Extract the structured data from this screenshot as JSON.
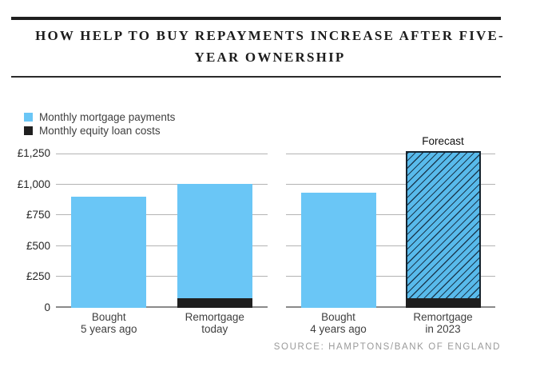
{
  "header": {
    "title_line1": "HOW HELP TO BUY REPAYMENTS INCREASE AFTER FIVE-",
    "title_line2": "YEAR OWNERSHIP"
  },
  "legend": {
    "items": [
      {
        "label": "Monthly mortgage payments",
        "color": "#6AC6F6"
      },
      {
        "label": "Monthly equity loan costs",
        "color": "#1F1F1F"
      }
    ]
  },
  "source": "SOURCE: HAMPTONS/BANK OF ENGLAND",
  "chart_data": {
    "type": "bar",
    "stacked": true,
    "title": "How Help to Buy repayments increase after five-year ownership",
    "xlabel": "",
    "ylabel": "",
    "ylim": [
      0,
      1250
    ],
    "grid": true,
    "legend_position": "top-left",
    "y_ticks": [
      0,
      250,
      500,
      750,
      1000,
      1250
    ],
    "y_tick_labels": [
      "0",
      "£250",
      "£500",
      "£750",
      "£1,000",
      "£1,250"
    ],
    "series_names": [
      "Monthly mortgage payments",
      "Monthly equity loan costs"
    ],
    "panels": [
      {
        "bars": [
          {
            "label": "Bought\n5 years ago",
            "mortgage": 900,
            "equity": 0,
            "forecast": false
          },
          {
            "label": "Remortgage\ntoday",
            "mortgage": 925,
            "equity": 80,
            "forecast": false
          }
        ]
      },
      {
        "bars": [
          {
            "label": "Bought\n4 years ago",
            "mortgage": 930,
            "equity": 0,
            "forecast": false
          },
          {
            "label": "Remortgage\nin 2023",
            "mortgage": 1190,
            "equity": 80,
            "forecast": true,
            "annotation": "Forecast"
          }
        ]
      }
    ],
    "colors": {
      "mortgage": "#6AC6F6",
      "equity": "#1F1F1F",
      "forecast_fill": "#58BAEB",
      "hatch_line": "#1C3B52",
      "gridline": "#B3B3B3",
      "baseline": "#8A8A8A"
    }
  }
}
